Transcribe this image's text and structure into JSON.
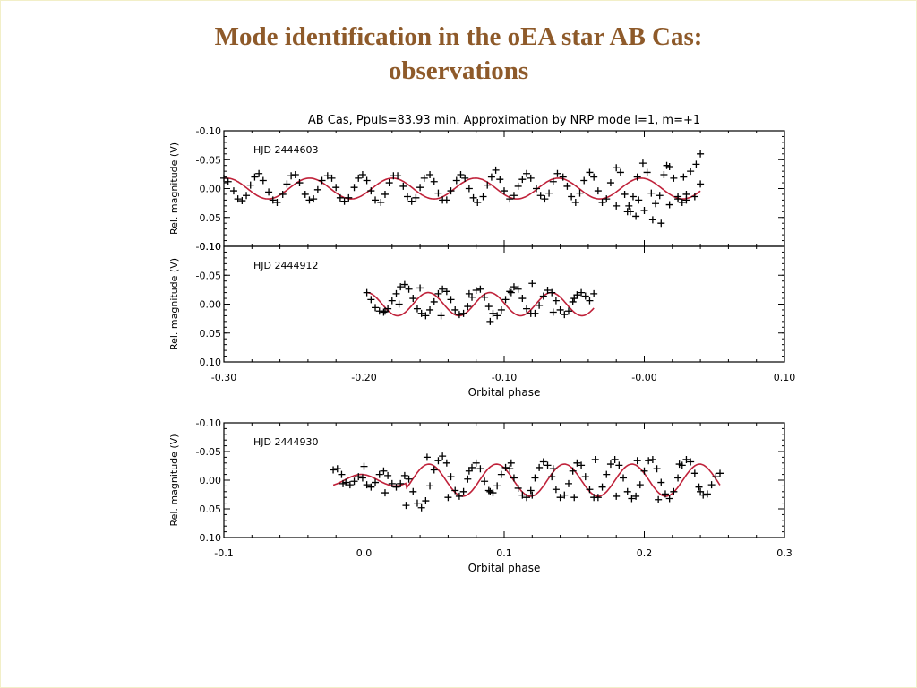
{
  "slide": {
    "title_line1": "Mode identification in the oEA star AB Cas:",
    "title_line2": "observations"
  },
  "colors": {
    "title": "#8e5a2a",
    "model_curve": "#c0223a",
    "data_points": "#000000",
    "axes": "#000000"
  },
  "chart_data": [
    {
      "type": "scatter",
      "title": "AB Cas, Ppuls=83.93 min. Approximation by NRP mode l=1, m=+1",
      "annotation": "HJD 2444603",
      "ylabel": "Rel. magnitude (V)",
      "xlabel": "",
      "xlim": [
        -0.3,
        0.1
      ],
      "ylim": [
        -0.1,
        0.1
      ],
      "y_inverted": true,
      "yticks": [
        "-0.10",
        "-0.05",
        "0.00",
        "0.05",
        "0.10"
      ],
      "xticks": [],
      "grid": false,
      "series": [
        {
          "marker": "+",
          "x": [
            -0.3,
            -0.297,
            -0.293,
            -0.29,
            -0.287,
            -0.284,
            -0.281,
            -0.278,
            -0.275,
            -0.272,
            -0.268,
            -0.265,
            -0.262,
            -0.258,
            -0.255,
            -0.252,
            -0.249,
            -0.246,
            -0.242,
            -0.239,
            -0.236,
            -0.233,
            -0.23,
            -0.226,
            -0.223,
            -0.22,
            -0.217,
            -0.214,
            -0.211,
            -0.207,
            -0.204,
            -0.201,
            -0.198,
            -0.195,
            -0.192,
            -0.188,
            -0.185,
            -0.182,
            -0.179,
            -0.176,
            -0.172,
            -0.169,
            -0.166,
            -0.163,
            -0.16,
            -0.157,
            -0.153,
            -0.15,
            -0.147,
            -0.144,
            -0.141,
            -0.138,
            -0.134,
            -0.131,
            -0.128,
            -0.125,
            -0.122,
            -0.119,
            -0.115,
            -0.112,
            -0.109,
            -0.106,
            -0.103,
            -0.1,
            -0.096,
            -0.093,
            -0.09,
            -0.087,
            -0.084,
            -0.081,
            -0.077,
            -0.074,
            -0.071,
            -0.068,
            -0.065,
            -0.062,
            -0.058,
            -0.055,
            -0.052,
            -0.049,
            -0.046,
            -0.043,
            -0.039,
            -0.036,
            -0.033,
            -0.03,
            -0.027,
            -0.024,
            -0.02,
            -0.017,
            -0.014,
            -0.011,
            -0.008,
            -0.005,
            -0.001,
            0.002,
            0.005,
            0.008,
            0.011,
            0.014,
            0.018,
            0.021,
            0.024,
            0.027,
            0.03,
            0.033,
            0.037,
            0.04,
            -0.02,
            -0.012,
            -0.006,
            0.0,
            0.006,
            0.012,
            0.018,
            0.024,
            0.03,
            0.036,
            0.04,
            -0.01,
            -0.004,
            0.016,
            0.028
          ],
          "y": [
            -0.018,
            -0.012,
            0.004,
            0.018,
            0.021,
            0.012,
            -0.006,
            -0.02,
            -0.026,
            -0.014,
            0.006,
            0.02,
            0.024,
            0.01,
            -0.008,
            -0.022,
            -0.024,
            -0.01,
            0.01,
            0.02,
            0.018,
            0.002,
            -0.014,
            -0.022,
            -0.018,
            -0.002,
            0.016,
            0.022,
            0.016,
            -0.002,
            -0.018,
            -0.024,
            -0.014,
            0.004,
            0.02,
            0.024,
            0.01,
            -0.01,
            -0.022,
            -0.022,
            -0.004,
            0.014,
            0.022,
            0.016,
            -0.002,
            -0.018,
            -0.024,
            -0.012,
            0.008,
            0.02,
            0.02,
            0.004,
            -0.014,
            -0.024,
            -0.018,
            0.0,
            0.016,
            0.024,
            0.014,
            -0.006,
            -0.02,
            -0.032,
            -0.016,
            0.004,
            0.018,
            0.012,
            -0.004,
            -0.016,
            -0.026,
            -0.018,
            0.0,
            0.012,
            0.018,
            0.008,
            -0.012,
            -0.026,
            -0.02,
            -0.004,
            0.014,
            0.024,
            0.008,
            -0.014,
            -0.028,
            -0.02,
            0.004,
            0.024,
            0.018,
            -0.01,
            -0.036,
            -0.028,
            0.01,
            0.03,
            0.014,
            -0.02,
            -0.044,
            -0.028,
            0.008,
            0.026,
            0.012,
            -0.024,
            -0.038,
            -0.018,
            0.014,
            0.024,
            0.01,
            -0.03,
            -0.042,
            -0.008,
            0.03,
            0.04,
            0.048,
            0.038,
            0.054,
            0.06,
            0.028,
            0.018,
            0.02,
            0.014,
            -0.06,
            0.04,
            0.02,
            -0.04,
            -0.02
          ]
        }
      ],
      "model": {
        "name": "",
        "amplitude": 0.018,
        "cycles_per_unit": 16.9,
        "phase0": -0.298
      }
    },
    {
      "type": "scatter",
      "annotation": "HJD 2444912",
      "ylabel": "Rel. magnitude (V)",
      "xlabel": "Orbital phase",
      "xlim": [
        -0.3,
        0.1
      ],
      "ylim": [
        -0.1,
        0.1
      ],
      "y_inverted": true,
      "yticks": [
        "-0.10",
        "-0.05",
        "0.00",
        "0.05",
        "0.10"
      ],
      "xticks": [
        "-0.30",
        "-0.20",
        "-0.10",
        "-0.00",
        "0.10"
      ],
      "grid": false,
      "series": [
        {
          "marker": "+",
          "x": [
            -0.198,
            -0.195,
            -0.192,
            -0.189,
            -0.186,
            -0.183,
            -0.18,
            -0.177,
            -0.174,
            -0.171,
            -0.168,
            -0.165,
            -0.162,
            -0.159,
            -0.156,
            -0.153,
            -0.15,
            -0.147,
            -0.144,
            -0.141,
            -0.138,
            -0.135,
            -0.132,
            -0.129,
            -0.126,
            -0.123,
            -0.12,
            -0.117,
            -0.114,
            -0.111,
            -0.108,
            -0.105,
            -0.102,
            -0.099,
            -0.096,
            -0.093,
            -0.09,
            -0.087,
            -0.084,
            -0.081,
            -0.078,
            -0.075,
            -0.072,
            -0.069,
            -0.066,
            -0.063,
            -0.06,
            -0.057,
            -0.054,
            -0.051,
            -0.048,
            -0.045,
            -0.042,
            -0.039,
            -0.036,
            -0.185,
            -0.175,
            -0.16,
            -0.145,
            -0.125,
            -0.11,
            -0.095,
            -0.08,
            -0.065,
            -0.05
          ],
          "y": [
            -0.02,
            -0.008,
            0.006,
            0.012,
            0.014,
            0.008,
            -0.006,
            -0.018,
            -0.03,
            -0.034,
            -0.026,
            -0.01,
            0.008,
            0.016,
            0.02,
            0.01,
            -0.004,
            -0.018,
            -0.026,
            -0.022,
            -0.008,
            0.01,
            0.018,
            0.016,
            0.004,
            -0.012,
            -0.024,
            -0.026,
            -0.012,
            0.004,
            0.016,
            0.02,
            0.01,
            -0.008,
            -0.022,
            -0.03,
            -0.026,
            -0.01,
            0.008,
            0.016,
            0.016,
            0.002,
            -0.014,
            -0.024,
            -0.02,
            -0.006,
            0.01,
            0.018,
            0.012,
            -0.004,
            -0.016,
            -0.02,
            -0.014,
            -0.006,
            -0.018,
            0.012,
            0.0,
            -0.028,
            0.02,
            -0.018,
            0.03,
            -0.02,
            -0.036,
            0.014,
            -0.01
          ]
        }
      ],
      "model": {
        "name": "",
        "amplitude": 0.02,
        "cycles_per_unit": 22.8,
        "phase0": -0.198
      }
    },
    {
      "type": "scatter",
      "annotation": "HJD 2444930",
      "ylabel": "Rel. magnitude (V)",
      "xlabel": "Orbital phase",
      "xlim": [
        -0.1,
        0.3
      ],
      "ylim": [
        -0.1,
        0.1
      ],
      "y_inverted": true,
      "yticks": [
        "-0.10",
        "-0.05",
        "0.00",
        "0.05",
        "0.10"
      ],
      "xticks": [
        "-0.1",
        "0.0",
        "0.1",
        "0.2",
        "0.3"
      ],
      "grid": false,
      "series": [
        {
          "marker": "+",
          "x": [
            -0.022,
            -0.019,
            -0.016,
            -0.013,
            -0.01,
            -0.007,
            -0.004,
            -0.001,
            0.002,
            0.005,
            0.008,
            0.011,
            0.014,
            0.017,
            0.02,
            0.023,
            0.026,
            0.029,
            0.032,
            0.035,
            0.038,
            0.041,
            0.044,
            0.047,
            0.05,
            0.053,
            0.056,
            0.059,
            0.062,
            0.065,
            0.068,
            0.071,
            0.074,
            0.077,
            0.08,
            0.083,
            0.086,
            0.089,
            0.092,
            0.095,
            0.098,
            0.101,
            0.104,
            0.107,
            0.11,
            0.113,
            0.116,
            0.119,
            0.122,
            0.125,
            0.128,
            0.131,
            0.134,
            0.137,
            0.14,
            0.143,
            0.146,
            0.149,
            0.152,
            0.155,
            0.158,
            0.161,
            0.164,
            0.167,
            0.17,
            0.173,
            0.176,
            0.179,
            0.182,
            0.185,
            0.188,
            0.191,
            0.194,
            0.197,
            0.2,
            0.203,
            0.206,
            0.209,
            0.212,
            0.215,
            0.218,
            0.221,
            0.224,
            0.227,
            0.23,
            0.233,
            0.236,
            0.239,
            0.242,
            0.245,
            0.248,
            0.251,
            0.254,
            -0.015,
            0.0,
            0.015,
            0.03,
            0.045,
            0.06,
            0.075,
            0.09,
            0.105,
            0.12,
            0.135,
            0.15,
            0.165,
            0.18,
            0.195,
            0.21,
            0.225,
            0.24
          ],
          "y": [
            -0.018,
            -0.02,
            -0.01,
            0.004,
            0.008,
            0.002,
            -0.006,
            -0.004,
            0.008,
            0.012,
            0.004,
            -0.01,
            -0.016,
            -0.008,
            0.006,
            0.012,
            0.006,
            -0.008,
            -0.002,
            0.02,
            0.04,
            0.048,
            0.036,
            0.01,
            -0.018,
            -0.034,
            -0.042,
            -0.03,
            -0.006,
            0.018,
            0.028,
            0.02,
            -0.002,
            -0.022,
            -0.03,
            -0.02,
            0.002,
            0.018,
            0.022,
            0.01,
            -0.01,
            -0.022,
            -0.02,
            -0.004,
            0.014,
            0.026,
            0.03,
            0.018,
            -0.004,
            -0.022,
            -0.032,
            -0.026,
            -0.006,
            0.016,
            0.03,
            0.026,
            0.006,
            -0.016,
            -0.03,
            -0.026,
            -0.006,
            0.016,
            0.03,
            0.03,
            0.012,
            -0.01,
            -0.028,
            -0.036,
            -0.026,
            -0.004,
            0.02,
            0.032,
            0.028,
            0.008,
            -0.016,
            -0.034,
            -0.036,
            -0.02,
            0.004,
            0.024,
            0.032,
            0.02,
            -0.004,
            -0.026,
            -0.036,
            -0.032,
            -0.012,
            0.012,
            0.026,
            0.024,
            0.008,
            -0.006,
            -0.012,
            0.006,
            -0.024,
            0.022,
            0.044,
            -0.04,
            0.03,
            -0.016,
            0.02,
            -0.03,
            0.026,
            -0.02,
            0.03,
            -0.036,
            0.028,
            -0.034,
            0.034,
            -0.028,
            0.02
          ]
        }
      ],
      "model": {
        "name": "",
        "amplitude": 0.028,
        "cycles_per_unit": 20.7,
        "phase0": -0.002,
        "pre_segment_amplitude": 0.01,
        "pre_segment_end": 0.03
      }
    }
  ]
}
